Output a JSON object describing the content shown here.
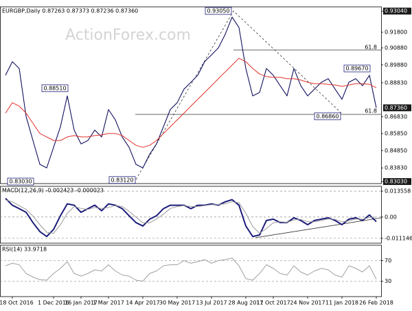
{
  "chart_data": [
    {
      "type": "line",
      "title": "EURGBP,Daily  0.87263 0.87373 0.87236 0.87360",
      "watermark": "ActionForex.com",
      "ylim": [
        0.8291,
        0.9329
      ],
      "yticks": [
        {
          "value": 0.9304,
          "label": "0.93040"
        },
        {
          "value": 0.918,
          "label": "0.91800"
        },
        {
          "value": 0.9088,
          "label": "0.90880"
        },
        {
          "value": 0.8988,
          "label": "0.89880"
        },
        {
          "value": 0.8883,
          "label": "0.88830"
        },
        {
          "value": 0.8683,
          "label": "0.86830"
        },
        {
          "value": 0.8585,
          "label": "0.85850"
        },
        {
          "value": 0.8485,
          "label": "0.84850"
        },
        {
          "value": 0.8383,
          "label": "0.83830"
        },
        {
          "value": 0.8303,
          "label": "0.83030"
        }
      ],
      "last_price": {
        "value": 0.8736,
        "label": "0.87360"
      },
      "annotations": [
        {
          "value": 0.9305,
          "label": "0.93050"
        },
        {
          "value": 0.8851,
          "label": "0.88510"
        },
        {
          "value": 0.8303,
          "label": "0.83030"
        },
        {
          "value": 0.8312,
          "label": "0.83120"
        },
        {
          "value": 0.8686,
          "label": "0.86860"
        },
        {
          "value": 0.8967,
          "label": "0.89670"
        }
      ],
      "fib_levels": [
        "61.8",
        "61.8"
      ],
      "grid": false,
      "series": [
        {
          "color": "#10105e",
          "values": [
            0.8927,
            0.9007,
            0.8967,
            0.8685,
            0.8544,
            0.8404,
            0.8383,
            0.8504,
            0.8625,
            0.8806,
            0.8605,
            0.8524,
            0.8544,
            0.8605,
            0.8565,
            0.8726,
            0.8665,
            0.8565,
            0.8504,
            0.8404,
            0.8383,
            0.8464,
            0.8524,
            0.8625,
            0.8726,
            0.8766,
            0.8846,
            0.8886,
            0.8927,
            0.9007,
            0.9047,
            0.9088,
            0.9168,
            0.9269,
            0.9208,
            0.8967,
            0.8806,
            0.8826,
            0.8967,
            0.8927,
            0.8866,
            0.8806,
            0.8967,
            0.8866,
            0.8806,
            0.8846,
            0.8886,
            0.8907,
            0.8846,
            0.8786,
            0.8886,
            0.8907,
            0.8866,
            0.8927,
            0.8736
          ]
        },
        {
          "color": "#e0302a",
          "values": [
            0.8705,
            0.8766,
            0.8746,
            0.8705,
            0.8645,
            0.8585,
            0.8565,
            0.8544,
            0.8544,
            0.8565,
            0.8573,
            0.8565,
            0.8565,
            0.8573,
            0.8577,
            0.8585,
            0.8585,
            0.8573,
            0.8544,
            0.8516,
            0.8504,
            0.8516,
            0.8544,
            0.8585,
            0.8625,
            0.8665,
            0.8705,
            0.8746,
            0.8786,
            0.8826,
            0.8866,
            0.8907,
            0.8947,
            0.8987,
            0.9027,
            0.9007,
            0.8967,
            0.8935,
            0.8919,
            0.8915,
            0.8915,
            0.8907,
            0.8907,
            0.8899,
            0.8886,
            0.8878,
            0.8878,
            0.8874,
            0.887,
            0.8862,
            0.887,
            0.8878,
            0.8878,
            0.8874,
            0.8854
          ]
        }
      ]
    },
    {
      "type": "line",
      "title": "MACD(12,26,9) -0.002423 -0.000023",
      "ylim": [
        -0.0137,
        0.0161
      ],
      "yticks": [
        0.013558,
        {
          "value": 0,
          "label": "0.00"
        },
        -0.011146
      ],
      "grid": true,
      "series": [
        {
          "color": "#1b1b7a",
          "values": [
            0.0098,
            0.0062,
            0.0044,
            0.0025,
            -0.0029,
            -0.0076,
            -0.0102,
            -0.0065,
            0.0007,
            0.0069,
            0.0062,
            0.0025,
            0.0044,
            0.0062,
            0.0033,
            0.0069,
            0.0062,
            0.0044,
            0.0007,
            -0.0029,
            -0.0047,
            -0.0011,
            0.0007,
            0.0044,
            0.0062,
            0.0062,
            0.0062,
            0.0044,
            0.0062,
            0.0062,
            0.0069,
            0.0062,
            0.008,
            0.0091,
            0.0062,
            -0.0047,
            -0.0102,
            -0.0094,
            -0.0018,
            -0.0011,
            -0.0029,
            -0.0029,
            -0.0004,
            -0.0018,
            -0.004,
            -0.0018,
            -0.0011,
            -0.0004,
            -0.0018,
            -0.004,
            -0.0011,
            -0.0004,
            -0.0018,
            0.0011,
            -0.0024
          ]
        },
        {
          "color": "#9a9a9a",
          "values": [
            0.009,
            0.008,
            0.006,
            0.004,
            0.0005,
            -0.004,
            -0.008,
            -0.0085,
            -0.004,
            0.002,
            0.0055,
            0.0045,
            0.004,
            0.005,
            0.0045,
            0.005,
            0.006,
            0.0055,
            0.003,
            0,
            -0.003,
            -0.003,
            -0.001,
            0.0015,
            0.0045,
            0.0055,
            0.006,
            0.0055,
            0.0055,
            0.006,
            0.0065,
            0.0065,
            0.007,
            0.008,
            0.0075,
            0.002,
            -0.005,
            -0.0085,
            -0.006,
            -0.003,
            -0.0025,
            -0.0028,
            -0.0015,
            -0.0012,
            -0.0025,
            -0.0025,
            -0.0018,
            -0.001,
            -0.0012,
            -0.0025,
            -0.002,
            -0.001,
            -0.0012,
            -0.0002,
            0
          ]
        }
      ]
    },
    {
      "type": "line",
      "title": "RSI(14) 33.9718",
      "ylim": [
        0,
        100
      ],
      "yticks": [
        70,
        30
      ],
      "grid": true,
      "categories": [
        null,
        "18 Oct 2016",
        null,
        null,
        null,
        null,
        null,
        "1 Dec 2016",
        null,
        null,
        null,
        "16 Jan 2017",
        null,
        null,
        null,
        "1 Mar 2017",
        null,
        null,
        null,
        null,
        "14 Apr 2017",
        null,
        null,
        null,
        null,
        "30 May 2017",
        null,
        null,
        null,
        null,
        "13 Jul 2017",
        null,
        null,
        null,
        null,
        "28 Aug 2017",
        null,
        null,
        null,
        "11 Oct 2017",
        null,
        null,
        null,
        null,
        "24 Nov 2017",
        null,
        null,
        null,
        null,
        "11 Jan 2018",
        null,
        null,
        null,
        null,
        "26 Feb 2018"
      ],
      "series": [
        {
          "color": "#a0a0a0",
          "values": [
            60,
            65,
            62,
            45,
            38,
            33,
            32,
            45,
            55,
            68,
            45,
            40,
            45,
            52,
            50,
            62,
            50,
            42,
            40,
            32,
            30,
            45,
            50,
            60,
            62,
            62,
            70,
            65,
            68,
            72,
            65,
            70,
            72,
            75,
            60,
            35,
            32,
            45,
            62,
            55,
            45,
            42,
            60,
            48,
            42,
            50,
            55,
            52,
            42,
            38,
            60,
            55,
            48,
            60,
            33.9718
          ]
        }
      ]
    }
  ]
}
